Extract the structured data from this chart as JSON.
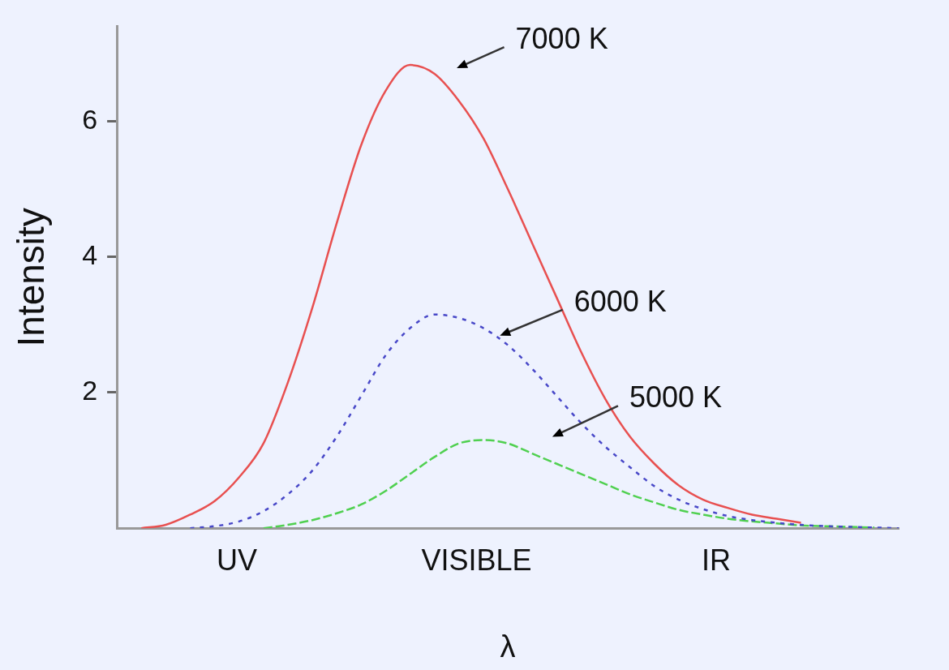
{
  "chart_data": {
    "type": "line",
    "xlabel": "λ",
    "ylabel": "Intensity",
    "categories": [
      null,
      null,
      null,
      null,
      null,
      null,
      null,
      null,
      null,
      null,
      null,
      null,
      null,
      null,
      null,
      null,
      null,
      null,
      null,
      null,
      null,
      null,
      null,
      null,
      null,
      null,
      null,
      null,
      null,
      null,
      null,
      null,
      null
    ],
    "ylim": [
      0,
      7.4
    ],
    "yticks": [
      2,
      4,
      6
    ],
    "grid": false,
    "legend": false,
    "marker": "none",
    "series": [
      {
        "name": "7000 K",
        "color": "#e85050",
        "line_style": "solid",
        "values": [
          null,
          0,
          0.05,
          0.2,
          0.4,
          0.75,
          1.25,
          2.15,
          3.25,
          4.5,
          5.65,
          6.45,
          6.83,
          6.7,
          6.3,
          5.75,
          5.0,
          4.2,
          3.4,
          2.6,
          1.9,
          1.35,
          0.95,
          0.63,
          0.42,
          0.3,
          0.2,
          0.14,
          0.08,
          null,
          null,
          null,
          null
        ]
      },
      {
        "name": "6000 K",
        "color": "#4848c8",
        "line_style": "dotted",
        "values": [
          null,
          null,
          null,
          0,
          0.03,
          0.1,
          0.25,
          0.5,
          0.85,
          1.35,
          1.95,
          2.55,
          2.95,
          3.15,
          3.1,
          2.95,
          2.7,
          2.35,
          1.95,
          1.55,
          1.2,
          0.9,
          0.62,
          0.42,
          0.28,
          0.18,
          0.12,
          0.08,
          0.05,
          0.03,
          0.02,
          0.01,
          0
        ]
      },
      {
        "name": "5000 K",
        "color": "#50d050",
        "line_style": "dashed",
        "values": [
          null,
          null,
          null,
          null,
          null,
          null,
          0,
          0.05,
          0.12,
          0.22,
          0.35,
          0.55,
          0.8,
          1.05,
          1.25,
          1.3,
          1.25,
          1.1,
          0.95,
          0.8,
          0.65,
          0.5,
          0.38,
          0.27,
          0.2,
          0.14,
          0.1,
          0.07,
          0.04,
          0.03,
          0.02,
          0.01,
          null
        ]
      }
    ],
    "annotations": [
      "UV",
      "VISIBLE",
      "IR"
    ]
  }
}
